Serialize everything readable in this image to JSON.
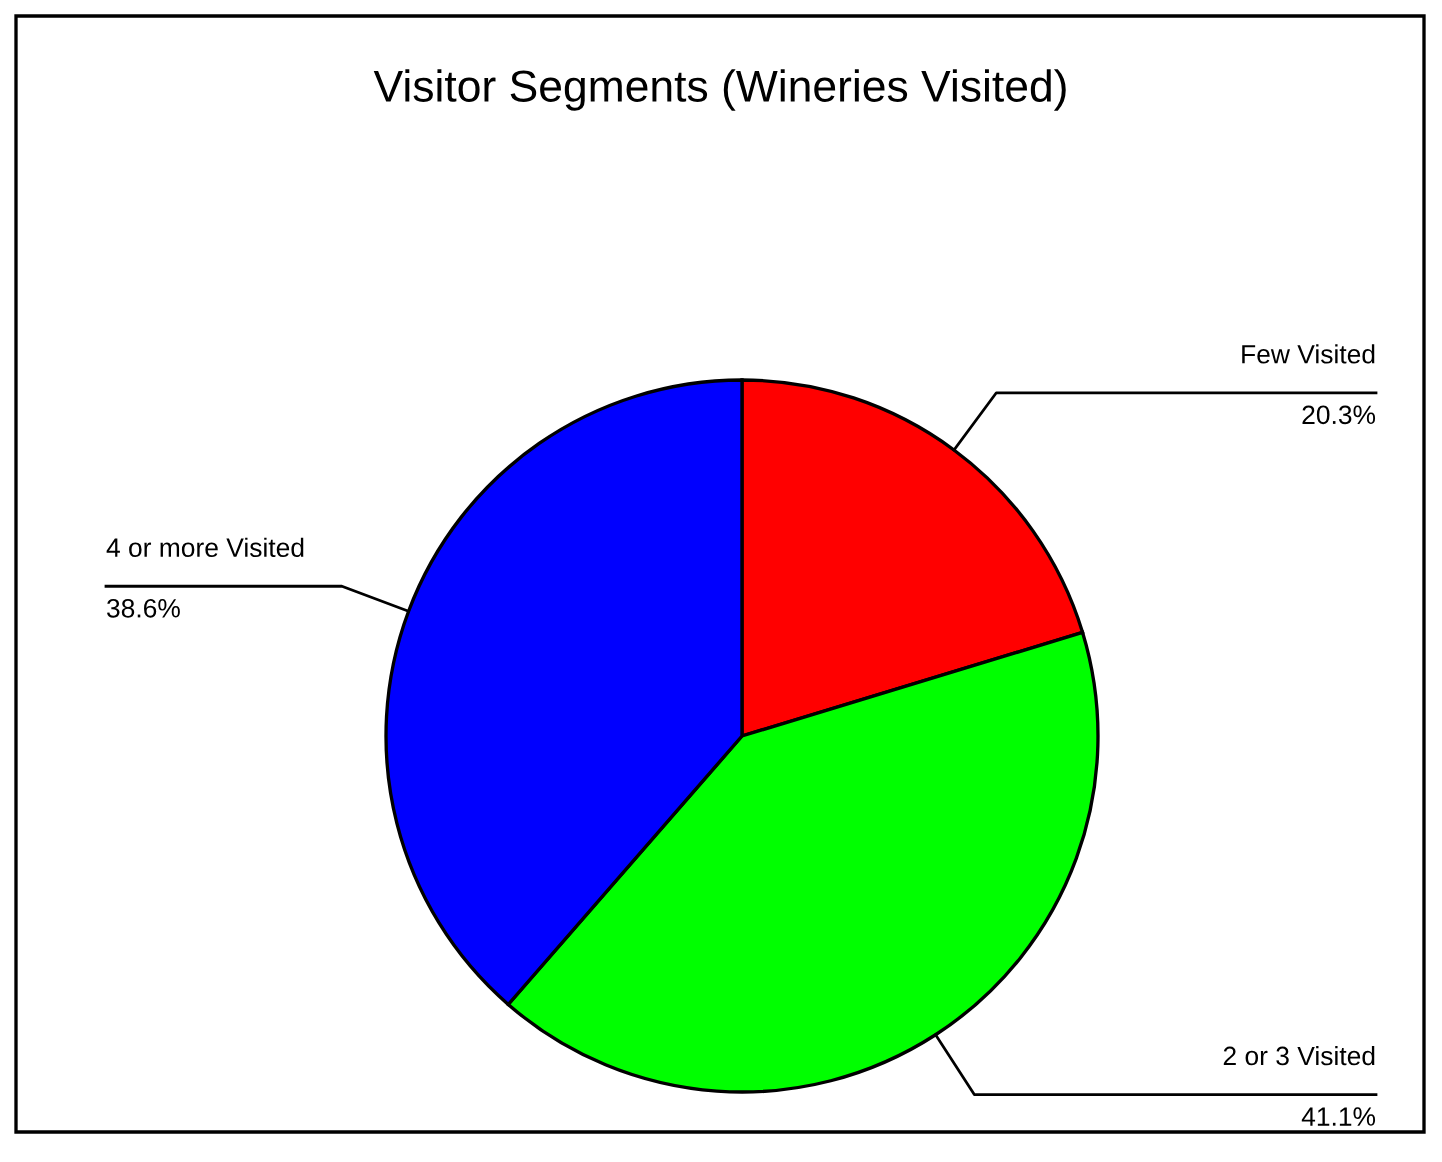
{
  "chart_data": {
    "type": "pie",
    "title": "Visitor Segments (Wineries Visited)",
    "categories": [
      "Few Visited",
      "2 or 3 Visited",
      "4 or more Visited"
    ],
    "values": [
      20.3,
      41.1,
      38.6
    ],
    "colors": [
      "#ff0000",
      "#00ff00",
      "#0000ff"
    ],
    "value_labels": [
      "20.3%",
      "41.1%",
      "38.6%"
    ]
  }
}
